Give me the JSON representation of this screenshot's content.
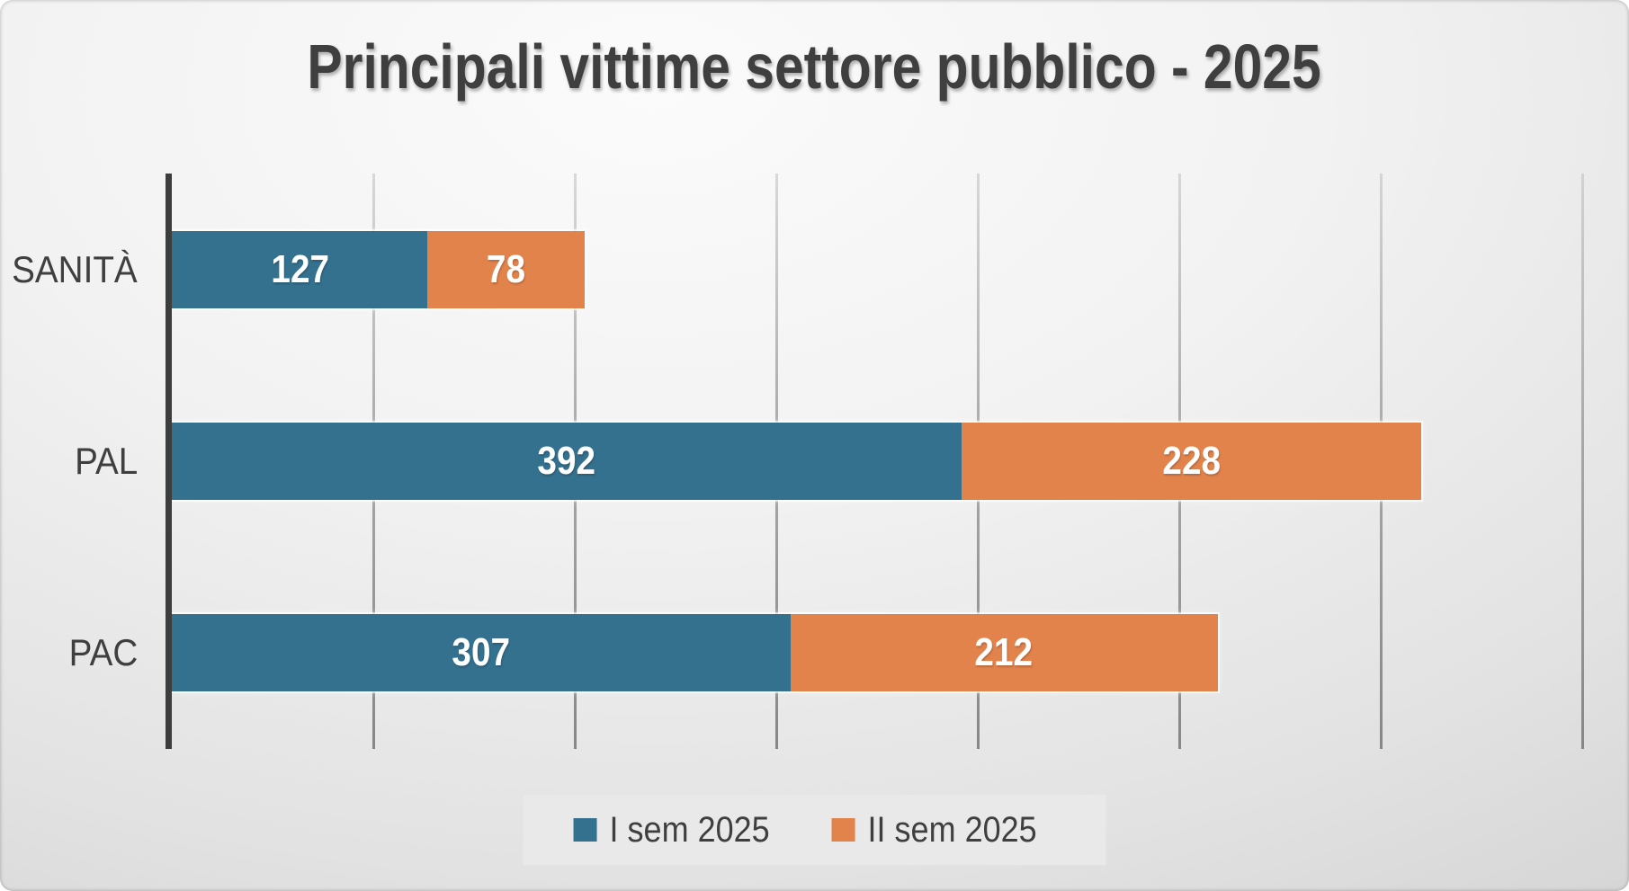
{
  "chart_data": {
    "type": "bar",
    "orientation": "horizontal",
    "stacked": true,
    "title": "Principali vittime settore pubblico - 2025",
    "categories": [
      "SANITÀ",
      "PAL",
      "PAC"
    ],
    "series": [
      {
        "name": "I sem 2025",
        "color": "#34718F",
        "values": [
          127,
          392,
          307
        ]
      },
      {
        "name": "II sem 2025",
        "color": "#E2834C",
        "values": [
          78,
          228,
          212
        ]
      }
    ],
    "xlim": [
      0,
      700
    ],
    "grid_interval": 100,
    "grid": true,
    "legend_position": "bottom",
    "data_labels": true,
    "data_label_color": "#FFFFFF"
  },
  "colors": {
    "text_color": "#3F3F3F",
    "axis_color": "#3D3D3D",
    "legend_bg": "#E9E9E9",
    "background_light": "#FBFBFB",
    "background_dark": "#C2C2C2"
  }
}
